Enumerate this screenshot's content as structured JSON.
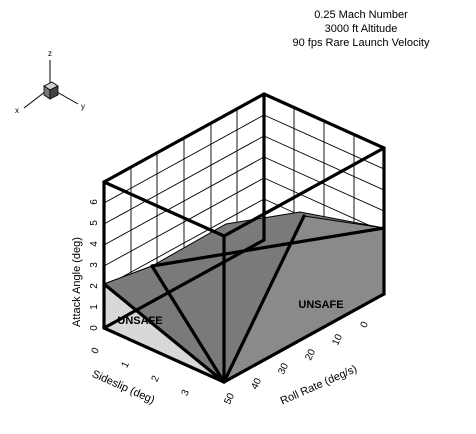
{
  "chart_data": {
    "type": "surface3d",
    "title_lines": [
      "0.25 Mach Number",
      "3000 ft Altitude",
      "90 fps Rare Launch Velocity"
    ],
    "xlabel": "Roll Rate (deg/s)",
    "ylabel": "Sideslip (deg)",
    "zlabel": "Attack Angle (deg)",
    "x_ticks": [
      "50",
      "40",
      "30",
      "20",
      "10",
      "0"
    ],
    "y_ticks": [
      "0",
      "1",
      "2",
      "3"
    ],
    "z_ticks": [
      "0",
      "1",
      "2",
      "3",
      "4",
      "5",
      "6"
    ],
    "regions": [
      "UNSAFE",
      "UNSAFE"
    ],
    "orientation_axes": [
      "z",
      "x",
      "y"
    ],
    "grid": true,
    "surface_color": "#7a7a7a"
  }
}
